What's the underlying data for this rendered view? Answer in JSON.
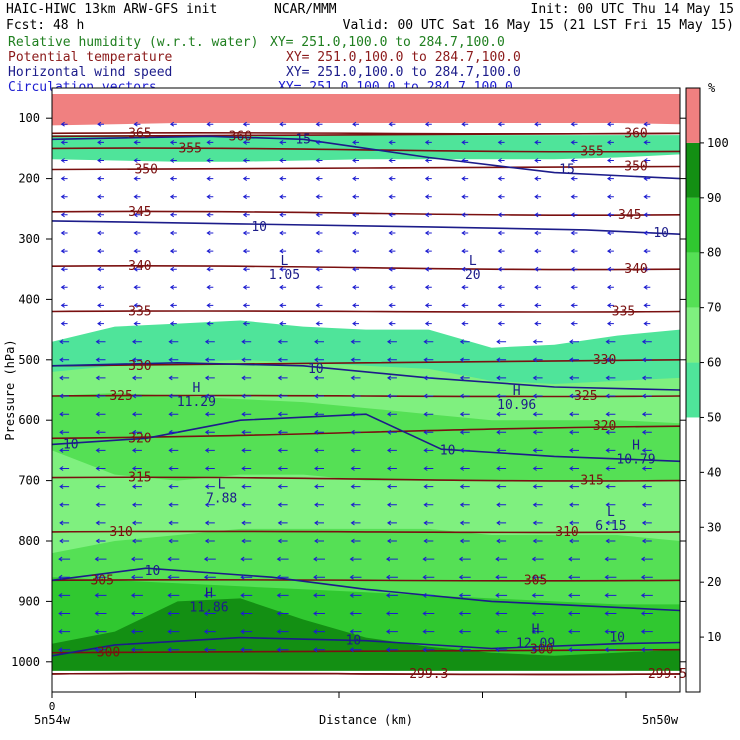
{
  "header": {
    "model": "HAIC-HIWC 13km ARW-GFS init",
    "center": "NCAR/MMM",
    "init": "Init: 00 UTC Thu 14 May 15",
    "fcst": "Fcst:   48 h",
    "valid": "Valid: 00 UTC Sat 16 May 15 (21 LST Fri 15 May 15)"
  },
  "fields": [
    {
      "name": "Relative humidity (w.r.t. water)",
      "xy": "XY= 251.0,100.0 to 284.7,100.0",
      "color": "#1f7f1f"
    },
    {
      "name": "Potential temperature",
      "xy": "XY= 251.0,100.0 to 284.7,100.0",
      "color": "#8b1a1a"
    },
    {
      "name": "Horizontal wind speed",
      "xy": "XY= 251.0,100.0 to 284.7,100.0",
      "color": "#1c1c8a"
    },
    {
      "name": "Circulation vectors",
      "xy": "XY= 251.0,100.0 to 284.7,100.0",
      "color": "#1c1cd0"
    }
  ],
  "chart_data": {
    "type": "heatmap",
    "xlabel": "Distance (km)",
    "ylabel": "Pressure (hPa)",
    "x_left_label": "5n54w",
    "x_right_label": "5n50w",
    "x_origin_label": "0",
    "yticks": [
      100,
      200,
      300,
      400,
      500,
      600,
      700,
      800,
      900,
      1000
    ],
    "ylim": [
      1050,
      50
    ],
    "colorbar": {
      "unit": "%",
      "ticks": [
        10,
        20,
        30,
        40,
        50,
        60,
        70,
        80,
        90,
        100
      ],
      "bands": [
        {
          "from": 0,
          "to": 50,
          "color": "#ffffff"
        },
        {
          "from": 50,
          "to": 60,
          "color": "#4fe49a"
        },
        {
          "from": 60,
          "to": 70,
          "color": "#7ff07f"
        },
        {
          "from": 70,
          "to": 80,
          "color": "#55e055"
        },
        {
          "from": 80,
          "to": 90,
          "color": "#30c830"
        },
        {
          "from": 90,
          "to": 100,
          "color": "#138f13"
        },
        {
          "from": 100,
          "to": 110,
          "color": "#f08080"
        }
      ]
    },
    "theta_labels": [
      {
        "text": "365",
        "p": 125,
        "x": 0.14
      },
      {
        "text": "360",
        "p": 130,
        "x": 0.3
      },
      {
        "text": "360",
        "p": 125,
        "x": 0.93
      },
      {
        "text": "355",
        "p": 150,
        "x": 0.22
      },
      {
        "text": "355",
        "p": 155,
        "x": 0.86
      },
      {
        "text": "350",
        "p": 185,
        "x": 0.15
      },
      {
        "text": "350",
        "p": 180,
        "x": 0.93
      },
      {
        "text": "345",
        "p": 255,
        "x": 0.14
      },
      {
        "text": "345",
        "p": 260,
        "x": 0.92
      },
      {
        "text": "340",
        "p": 345,
        "x": 0.14
      },
      {
        "text": "340",
        "p": 350,
        "x": 0.93
      },
      {
        "text": "335",
        "p": 420,
        "x": 0.14
      },
      {
        "text": "335",
        "p": 420,
        "x": 0.91
      },
      {
        "text": "330",
        "p": 510,
        "x": 0.14
      },
      {
        "text": "330",
        "p": 500,
        "x": 0.88
      },
      {
        "text": "325",
        "p": 560,
        "x": 0.11
      },
      {
        "text": "325",
        "p": 560,
        "x": 0.85
      },
      {
        "text": "320",
        "p": 630,
        "x": 0.14
      },
      {
        "text": "320",
        "p": 610,
        "x": 0.88
      },
      {
        "text": "315",
        "p": 695,
        "x": 0.14
      },
      {
        "text": "315",
        "p": 700,
        "x": 0.86
      },
      {
        "text": "310",
        "p": 785,
        "x": 0.11
      },
      {
        "text": "310",
        "p": 785,
        "x": 0.82
      },
      {
        "text": "305",
        "p": 865,
        "x": 0.08
      },
      {
        "text": "305",
        "p": 865,
        "x": 0.77
      },
      {
        "text": "300",
        "p": 985,
        "x": 0.09
      },
      {
        "text": "300",
        "p": 980,
        "x": 0.78
      },
      {
        "text": "299.3",
        "p": 1020,
        "x": 0.6
      },
      {
        "text": "299.5",
        "p": 1020,
        "x": 0.98
      }
    ],
    "wind_labels": [
      {
        "text": "15",
        "p": 135,
        "x": 0.4
      },
      {
        "text": "15",
        "p": 185,
        "x": 0.82
      },
      {
        "text": "10",
        "p": 280,
        "x": 0.33
      },
      {
        "text": "10",
        "p": 290,
        "x": 0.97
      },
      {
        "text": "10",
        "p": 515,
        "x": 0.42
      },
      {
        "text": "10",
        "p": 640,
        "x": 0.03
      },
      {
        "text": "10",
        "p": 650,
        "x": 0.63
      },
      {
        "text": "10",
        "p": 850,
        "x": 0.16
      },
      {
        "text": "10",
        "p": 965,
        "x": 0.48
      },
      {
        "text": "10",
        "p": 960,
        "x": 0.9
      }
    ],
    "extrema": [
      {
        "type": "L",
        "value": "1.05",
        "p": 350,
        "x": 0.37
      },
      {
        "type": "L",
        "value": "20",
        "p": 350,
        "x": 0.67
      },
      {
        "type": "H",
        "value": "11.29",
        "p": 560,
        "x": 0.23
      },
      {
        "type": "H",
        "value": "10.96",
        "p": 565,
        "x": 0.74
      },
      {
        "type": "H",
        "value": "10.79",
        "p": 655,
        "x": 0.93
      },
      {
        "type": "L",
        "value": "7.88",
        "p": 720,
        "x": 0.27
      },
      {
        "type": "L",
        "value": "6.15",
        "p": 765,
        "x": 0.89
      },
      {
        "type": "H",
        "value": "11.86",
        "p": 900,
        "x": 0.25
      },
      {
        "type": "H",
        "value": "12.09",
        "p": 960,
        "x": 0.77
      }
    ]
  }
}
